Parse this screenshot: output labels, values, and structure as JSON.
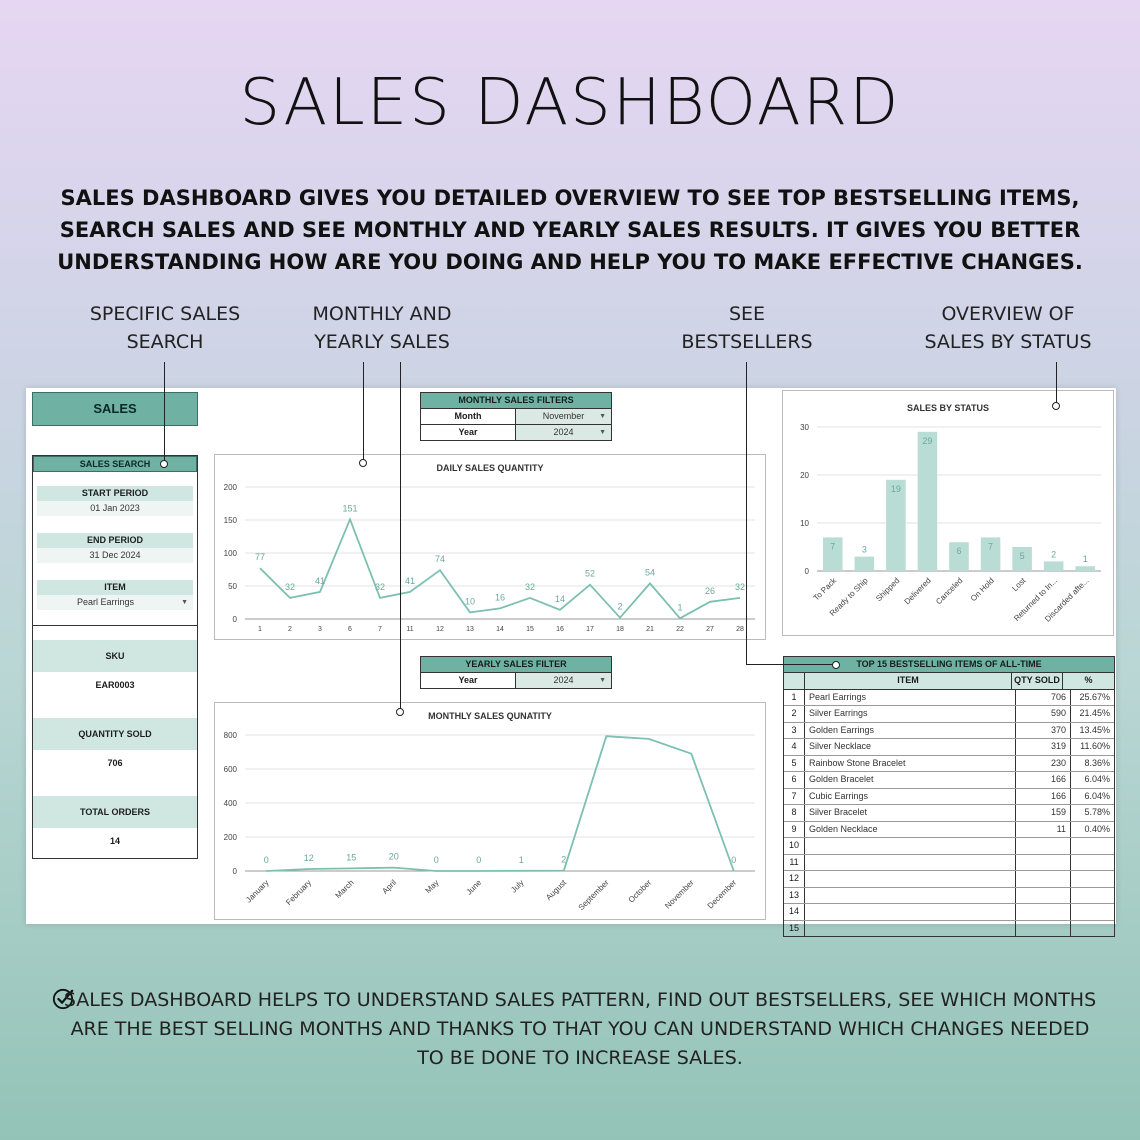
{
  "title": "SALES DASHBOARD",
  "intro": "SALES DASHBOARD GIVES YOU DETAILED OVERVIEW TO SEE TOP BESTSELLING ITEMS, SEARCH SALES AND SEE MONTHLY AND YEARLY SALES RESULTS. IT GIVES YOU BETTER UNDERSTANDING HOW ARE YOU DOING AND HELP YOU TO MAKE EFFECTIVE CHANGES.",
  "callouts": {
    "search": "SPECIFIC SALES\nSEARCH",
    "monthly": "MONTHLY AND\nYEARLY SALES",
    "bestsellers": "SEE\nBESTSELLERS",
    "status": "OVERVIEW OF\nSALES BY STATUS"
  },
  "sidebar": {
    "sales_label": "SALES",
    "search_title": "SALES SEARCH",
    "start_label": "START PERIOD",
    "start_value": "01 Jan 2023",
    "end_label": "END PERIOD",
    "end_value": "31 Dec 2024",
    "item_label": "ITEM",
    "item_value": "Pearl Earrings",
    "sku_label": "SKU",
    "sku_value": "EAR0003",
    "qty_label": "QUANTITY SOLD",
    "qty_value": "706",
    "orders_label": "TOTAL ORDERS",
    "orders_value": "14"
  },
  "monthly_filters": {
    "title": "MONTHLY SALES FILTERS",
    "month_label": "Month",
    "month_value": "November",
    "year_label": "Year",
    "year_value": "2024"
  },
  "yearly_filter": {
    "title": "YEARLY SALES FILTER",
    "year_label": "Year",
    "year_value": "2024"
  },
  "bestsellers": {
    "title": "TOP 15 BESTSELLING ITEMS OF ALL-TIME",
    "headers": [
      "ITEM",
      "QTY SOLD",
      "%"
    ],
    "rows": [
      {
        "n": "1",
        "item": "Pearl Earrings",
        "qty": "706",
        "pct": "25.67%"
      },
      {
        "n": "2",
        "item": "Silver Earrings",
        "qty": "590",
        "pct": "21.45%"
      },
      {
        "n": "3",
        "item": "Golden Earrings",
        "qty": "370",
        "pct": "13.45%"
      },
      {
        "n": "4",
        "item": "Silver Necklace",
        "qty": "319",
        "pct": "11.60%"
      },
      {
        "n": "5",
        "item": "Rainbow Stone Bracelet",
        "qty": "230",
        "pct": "8.36%"
      },
      {
        "n": "6",
        "item": "Golden Bracelet",
        "qty": "166",
        "pct": "6.04%"
      },
      {
        "n": "7",
        "item": "Cubic Earrings",
        "qty": "166",
        "pct": "6.04%"
      },
      {
        "n": "8",
        "item": "Silver Bracelet",
        "qty": "159",
        "pct": "5.78%"
      },
      {
        "n": "9",
        "item": "Golden Necklace",
        "qty": "11",
        "pct": "0.40%"
      },
      {
        "n": "10",
        "item": "",
        "qty": "",
        "pct": ""
      },
      {
        "n": "11",
        "item": "",
        "qty": "",
        "pct": ""
      },
      {
        "n": "12",
        "item": "",
        "qty": "",
        "pct": ""
      },
      {
        "n": "13",
        "item": "",
        "qty": "",
        "pct": ""
      },
      {
        "n": "14",
        "item": "",
        "qty": "",
        "pct": ""
      },
      {
        "n": "15",
        "item": "",
        "qty": "",
        "pct": ""
      }
    ]
  },
  "footer": "SALES DASHBOARD HELPS TO UNDERSTAND SALES PATTERN, FIND OUT BESTSELLERS, SEE WHICH MONTHS ARE THE BEST SELLING MONTHS AND THANKS TO THAT YOU CAN UNDERSTAND  WHICH CHANGES NEEDED TO BE DONE TO INCREASE SALES.",
  "colors": {
    "accent": "#6fb2a3",
    "light": "#cfe7e0",
    "line": "#7cc0b1",
    "bar": "#b9ddd5"
  },
  "chart_data": [
    {
      "type": "line",
      "title": "DAILY SALES QUANTITY",
      "x": [
        "1",
        "2",
        "3",
        "6",
        "7",
        "11",
        "12",
        "13",
        "14",
        "15",
        "16",
        "17",
        "18",
        "21",
        "22",
        "27",
        "28"
      ],
      "values": [
        77,
        32,
        41,
        151,
        32,
        41,
        74,
        10,
        16,
        32,
        14,
        52,
        2,
        54,
        1,
        26,
        32
      ],
      "ylim": [
        0,
        200
      ],
      "yticks": [
        0,
        50,
        100,
        150,
        200
      ]
    },
    {
      "type": "line",
      "title": "MONTHLY SALES QUNATITY",
      "x": [
        "January",
        "February",
        "March",
        "April",
        "May",
        "June",
        "July",
        "August",
        "September",
        "October",
        "November",
        "December"
      ],
      "values": [
        0,
        12,
        15,
        20,
        0,
        0,
        1,
        2,
        793,
        777,
        690,
        0
      ],
      "labels": [
        "0",
        "12",
        "15",
        "20",
        "0",
        "0",
        "1",
        "2",
        "",
        "",
        "",
        "0"
      ],
      "ylim": [
        0,
        800
      ],
      "yticks": [
        0,
        200,
        400,
        600,
        800
      ]
    },
    {
      "type": "bar",
      "title": "SALES BY STATUS",
      "categories": [
        "To Pack",
        "Ready to Ship",
        "Shipped",
        "Delivered",
        "Canceled",
        "On Hold",
        "Lost",
        "Returned to In...",
        "Discarded afte..."
      ],
      "values": [
        7,
        3,
        19,
        29,
        6,
        7,
        5,
        2,
        1
      ],
      "ylim": [
        0,
        30
      ],
      "yticks": [
        0,
        10,
        20,
        30
      ]
    }
  ]
}
